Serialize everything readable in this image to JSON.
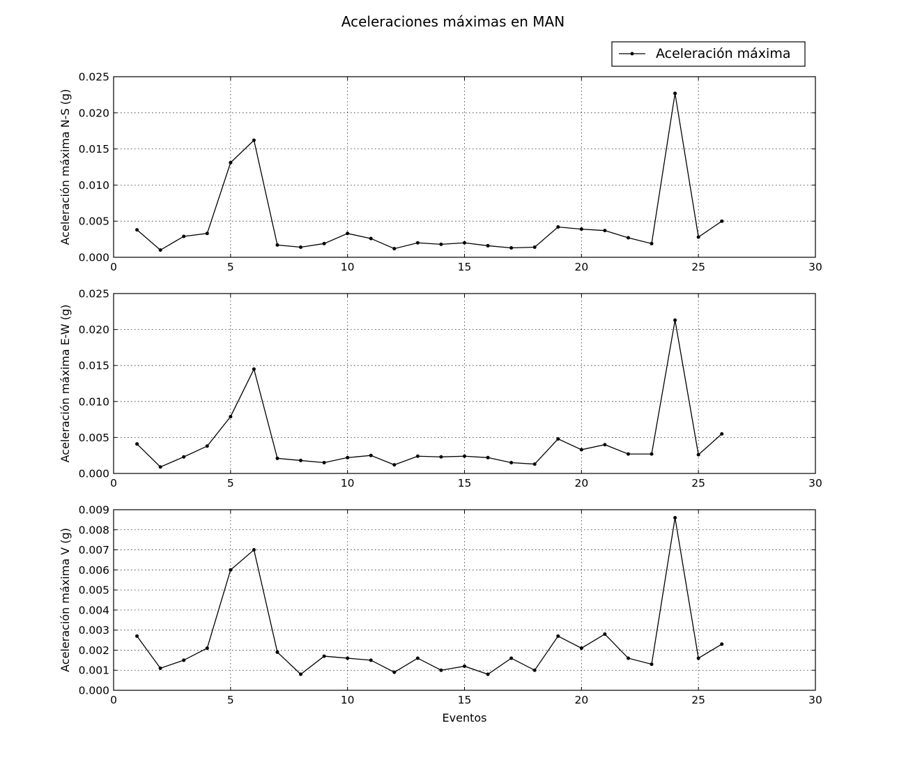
{
  "figure_title": "Aceleraciones máximas en MAN",
  "legend": {
    "label": "Aceleración máxima",
    "placement": "top-right"
  },
  "colors": {
    "line": "#000000",
    "background": "#ffffff"
  },
  "chart_data": [
    {
      "type": "line",
      "title": "",
      "xlabel": "",
      "ylabel": "Aceleración máxima N-S (g)",
      "xlim": [
        0,
        30
      ],
      "ylim": [
        0,
        0.025
      ],
      "xticks": [
        0,
        5,
        10,
        15,
        20,
        25,
        30
      ],
      "xtick_labels": [
        "0",
        "5",
        "10",
        "15",
        "20",
        "25",
        "30"
      ],
      "yticks": [
        0,
        0.005,
        0.01,
        0.015,
        0.02,
        0.025
      ],
      "ytick_labels": [
        "0.000",
        "0.005",
        "0.010",
        "0.015",
        "0.020",
        "0.025"
      ],
      "grid": true,
      "series": [
        {
          "name": "Aceleración máxima",
          "x": [
            1,
            2,
            3,
            4,
            5,
            6,
            7,
            8,
            9,
            10,
            11,
            12,
            13,
            14,
            15,
            16,
            17,
            18,
            19,
            20,
            21,
            22,
            23,
            24,
            25,
            26
          ],
          "values": [
            0.0038,
            0.001,
            0.0029,
            0.0033,
            0.0131,
            0.0162,
            0.0017,
            0.0014,
            0.0019,
            0.0033,
            0.0026,
            0.0012,
            0.002,
            0.0018,
            0.002,
            0.0016,
            0.0013,
            0.0014,
            0.0042,
            0.0039,
            0.0037,
            0.0027,
            0.0019,
            0.0227,
            0.0028,
            0.005
          ]
        }
      ]
    },
    {
      "type": "line",
      "title": "",
      "xlabel": "",
      "ylabel": "Aceleración máxima E-W (g)",
      "xlim": [
        0,
        30
      ],
      "ylim": [
        0,
        0.025
      ],
      "xticks": [
        0,
        5,
        10,
        15,
        20,
        25,
        30
      ],
      "xtick_labels": [
        "0",
        "5",
        "10",
        "15",
        "20",
        "25",
        "30"
      ],
      "yticks": [
        0,
        0.005,
        0.01,
        0.015,
        0.02,
        0.025
      ],
      "ytick_labels": [
        "0.000",
        "0.005",
        "0.010",
        "0.015",
        "0.020",
        "0.025"
      ],
      "grid": true,
      "series": [
        {
          "name": "Aceleración máxima",
          "x": [
            1,
            2,
            3,
            4,
            5,
            6,
            7,
            8,
            9,
            10,
            11,
            12,
            13,
            14,
            15,
            16,
            17,
            18,
            19,
            20,
            21,
            22,
            23,
            24,
            25,
            26
          ],
          "values": [
            0.0041,
            0.0009,
            0.0023,
            0.0038,
            0.0079,
            0.0145,
            0.0021,
            0.0018,
            0.0015,
            0.0022,
            0.0025,
            0.0012,
            0.0024,
            0.0023,
            0.0024,
            0.0022,
            0.0015,
            0.0013,
            0.0048,
            0.0033,
            0.004,
            0.0027,
            0.0027,
            0.0213,
            0.0026,
            0.0055
          ]
        }
      ]
    },
    {
      "type": "line",
      "title": "",
      "xlabel": "Eventos",
      "ylabel": "Aceleración máxima V (g)",
      "xlim": [
        0,
        30
      ],
      "ylim": [
        0,
        0.009
      ],
      "xticks": [
        0,
        5,
        10,
        15,
        20,
        25,
        30
      ],
      "xtick_labels": [
        "0",
        "5",
        "10",
        "15",
        "20",
        "25",
        "30"
      ],
      "yticks": [
        0,
        0.001,
        0.002,
        0.003,
        0.004,
        0.005,
        0.006,
        0.007,
        0.008,
        0.009
      ],
      "ytick_labels": [
        "0.000",
        "0.001",
        "0.002",
        "0.003",
        "0.004",
        "0.005",
        "0.006",
        "0.007",
        "0.008",
        "0.009"
      ],
      "grid": true,
      "series": [
        {
          "name": "Aceleración máxima",
          "x": [
            1,
            2,
            3,
            4,
            5,
            6,
            7,
            8,
            9,
            10,
            11,
            12,
            13,
            14,
            15,
            16,
            17,
            18,
            19,
            20,
            21,
            22,
            23,
            24,
            25,
            26
          ],
          "values": [
            0.0027,
            0.0011,
            0.0015,
            0.0021,
            0.006,
            0.007,
            0.0019,
            0.0008,
            0.0017,
            0.0016,
            0.0015,
            0.0009,
            0.0016,
            0.001,
            0.0012,
            0.0008,
            0.0016,
            0.001,
            0.0027,
            0.0021,
            0.0028,
            0.0016,
            0.0013,
            0.0086,
            0.0016,
            0.0023
          ]
        }
      ]
    }
  ]
}
